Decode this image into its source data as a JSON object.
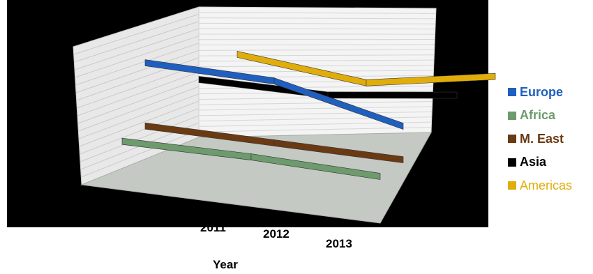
{
  "chart_data": {
    "type": "line",
    "view": "3d",
    "categories": [
      "2011",
      "2012",
      "2013"
    ],
    "xlabel": "Year",
    "ylabel": "",
    "grid": true,
    "legend_position": "right",
    "series": [
      {
        "name": "Europe",
        "color": "#1f5fbf",
        "values": [
          8.5,
          7.9,
          5.2
        ]
      },
      {
        "name": "Africa",
        "color": "#6d9b6d",
        "values": [
          2.8,
          2.4,
          1.7
        ]
      },
      {
        "name": "M. East",
        "color": "#6a3a12",
        "values": [
          3.6,
          3.1,
          2.6
        ]
      },
      {
        "name": "Asia",
        "color": "#000000",
        "values": [
          6.3,
          5.9,
          6.7
        ]
      },
      {
        "name": "Americas",
        "color": "#e0ad0a",
        "values": [
          7.6,
          6.2,
          7.5
        ]
      }
    ]
  }
}
